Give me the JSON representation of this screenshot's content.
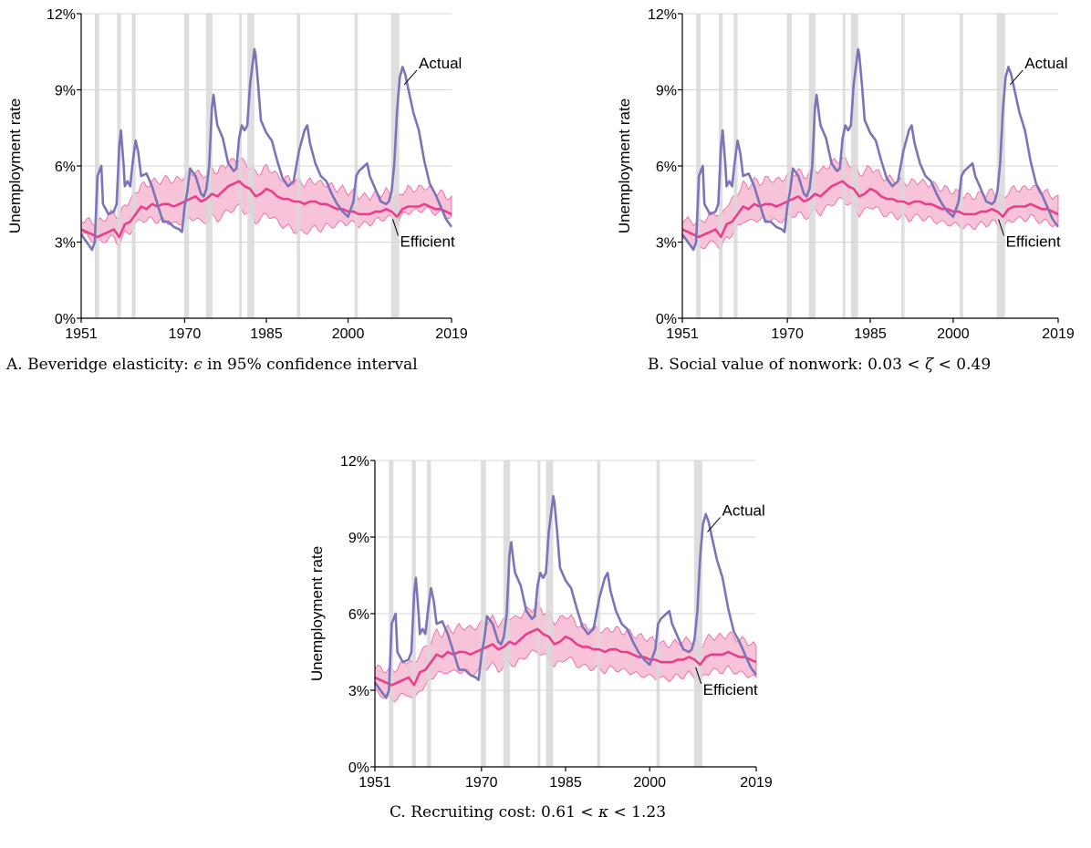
{
  "figure": {
    "panels": [
      {
        "id": "A",
        "caption_prefix": "A. Beveridge elasticity: ",
        "caption_symbol": "ϵ",
        "caption_suffix": " in 95% confidence interval",
        "band_lower_offset": [
          -0.15,
          -0.25,
          -0.35,
          -0.5,
          -0.7,
          -0.8,
          -0.9,
          -1.0,
          -1.0,
          -1.0,
          -1.2,
          -1.0,
          -0.5,
          -0.4,
          -0.3,
          -0.2,
          -0.15,
          -0.15
        ]
      },
      {
        "id": "B",
        "caption_prefix": "B. Social value of nonwork: 0.03 < ",
        "caption_symbol": "ζ",
        "caption_suffix": " < 0.49",
        "band_lower_offset": [
          -0.4,
          -0.45,
          -0.5,
          -0.55,
          -0.6,
          -0.65,
          -0.65,
          -0.7,
          -0.7,
          -0.65,
          -0.6,
          -0.6,
          -0.55,
          -0.5,
          -0.5,
          -0.5,
          -0.5,
          -0.5
        ]
      },
      {
        "id": "C",
        "caption_prefix": "C. Recruiting cost: 0.61 < ",
        "caption_symbol": "κ",
        "caption_suffix": " < 1.23",
        "band_lower_offset": [
          -0.55,
          -0.6,
          -0.65,
          -0.7,
          -0.75,
          -0.8,
          -0.8,
          -0.85,
          -0.85,
          -0.8,
          -0.75,
          -0.75,
          -0.7,
          -0.65,
          -0.65,
          -0.65,
          -0.65,
          -0.65
        ]
      }
    ]
  },
  "chart_data": {
    "type": "line",
    "ylabel": "Unemployment rate",
    "xlim": [
      1951,
      2019
    ],
    "ylim": [
      0,
      12
    ],
    "x_ticks": [
      1951,
      1970,
      1985,
      2000,
      2019
    ],
    "y_ticks": [
      0,
      3,
      6,
      9,
      12
    ],
    "y_tick_labels": [
      "0%",
      "3%",
      "6%",
      "9%",
      "12%"
    ],
    "grid": true,
    "recessions": [
      [
        1953.5,
        1954.3
      ],
      [
        1957.6,
        1958.3
      ],
      [
        1960.3,
        1961.0
      ],
      [
        1969.9,
        1970.8
      ],
      [
        1973.9,
        1975.1
      ],
      [
        1980.0,
        1980.5
      ],
      [
        1981.5,
        1982.8
      ],
      [
        1990.6,
        1991.2
      ],
      [
        2001.2,
        2001.8
      ],
      [
        2007.9,
        2009.4
      ]
    ],
    "series": [
      {
        "name": "Actual",
        "color": "#7b74b8",
        "x": [
          1951,
          1952,
          1953,
          1953.5,
          1954,
          1954.7,
          1955,
          1956,
          1957,
          1957.5,
          1958,
          1958.3,
          1958.8,
          1959,
          1959.5,
          1960,
          1960.5,
          1961,
          1961.5,
          1962,
          1963,
          1964,
          1965,
          1966,
          1967,
          1968,
          1969,
          1969.5,
          1970,
          1970.5,
          1971,
          1972,
          1973,
          1973.5,
          1974,
          1974.5,
          1975,
          1975.3,
          1975.8,
          1976,
          1977,
          1978,
          1979,
          1979.5,
          1980,
          1980.5,
          1981,
          1981.5,
          1982,
          1982.8,
          1983,
          1983.5,
          1984,
          1985,
          1986,
          1987,
          1988,
          1989,
          1990,
          1991,
          1992,
          1992.5,
          1993,
          1994,
          1995,
          1996,
          1997,
          1998,
          1999,
          2000,
          2001,
          2001.5,
          2002,
          2003,
          2003.5,
          2004,
          2005,
          2006,
          2007,
          2007.5,
          2008,
          2008.5,
          2009,
          2009.5,
          2010,
          2010.5,
          2011,
          2012,
          2013,
          2014,
          2015,
          2016,
          2017,
          2018,
          2019
        ],
        "y": [
          3.3,
          3.0,
          2.7,
          3.0,
          5.6,
          6.0,
          4.5,
          4.1,
          4.2,
          4.5,
          6.8,
          7.4,
          6.0,
          5.2,
          5.4,
          5.2,
          6.2,
          7.0,
          6.5,
          5.6,
          5.7,
          5.2,
          4.5,
          3.8,
          3.8,
          3.6,
          3.5,
          3.4,
          4.4,
          5.0,
          5.9,
          5.6,
          4.9,
          4.8,
          5.1,
          6.0,
          8.3,
          8.8,
          7.9,
          7.6,
          7.1,
          6.1,
          5.8,
          5.9,
          7.1,
          7.6,
          7.4,
          7.6,
          9.2,
          10.6,
          10.4,
          9.2,
          7.8,
          7.3,
          7.0,
          6.2,
          5.5,
          5.2,
          5.4,
          6.6,
          7.4,
          7.6,
          6.9,
          6.1,
          5.6,
          5.4,
          4.9,
          4.5,
          4.2,
          4.0,
          4.6,
          5.6,
          5.8,
          6.0,
          6.1,
          5.6,
          5.1,
          4.6,
          4.5,
          4.6,
          5.0,
          6.1,
          8.2,
          9.5,
          9.9,
          9.6,
          9.1,
          8.1,
          7.4,
          6.2,
          5.3,
          4.9,
          4.4,
          3.9,
          3.6
        ]
      },
      {
        "name": "Efficient",
        "color": "#e83f8c",
        "x": [
          1951,
          1952,
          1953,
          1954,
          1955,
          1956,
          1957,
          1958,
          1959,
          1960,
          1961,
          1962,
          1963,
          1964,
          1965,
          1966,
          1967,
          1968,
          1969,
          1970,
          1971,
          1972,
          1973,
          1974,
          1975,
          1976,
          1977,
          1978,
          1979,
          1980,
          1981,
          1982,
          1983,
          1984,
          1985,
          1986,
          1987,
          1988,
          1989,
          1990,
          1991,
          1992,
          1993,
          1994,
          1995,
          1996,
          1997,
          1998,
          1999,
          2000,
          2001,
          2002,
          2003,
          2004,
          2005,
          2006,
          2007,
          2008,
          2009,
          2010,
          2011,
          2012,
          2013,
          2014,
          2015,
          2016,
          2017,
          2018,
          2019
        ],
        "y": [
          3.5,
          3.4,
          3.3,
          3.2,
          3.3,
          3.4,
          3.5,
          3.2,
          3.7,
          3.8,
          4.1,
          4.4,
          4.3,
          4.5,
          4.4,
          4.5,
          4.5,
          4.4,
          4.5,
          4.6,
          4.7,
          4.8,
          4.6,
          4.7,
          4.9,
          4.8,
          5.0,
          5.2,
          5.3,
          5.4,
          5.2,
          5.1,
          4.8,
          4.9,
          5.1,
          5.0,
          4.8,
          4.7,
          4.7,
          4.6,
          4.6,
          4.5,
          4.6,
          4.6,
          4.5,
          4.5,
          4.4,
          4.3,
          4.3,
          4.2,
          4.2,
          4.1,
          4.1,
          4.1,
          4.2,
          4.2,
          4.3,
          4.2,
          4.0,
          4.3,
          4.4,
          4.4,
          4.4,
          4.5,
          4.4,
          4.3,
          4.3,
          4.2,
          4.1
        ]
      }
    ],
    "band": {
      "name": "95% band",
      "color": "#f7c3d9",
      "x": [
        1951,
        1955,
        1959,
        1963,
        1967,
        1971,
        1975,
        1979,
        1983,
        1987,
        1991,
        1995,
        1999,
        2003,
        2007,
        2011,
        2015,
        2019
      ],
      "upper_offset": [
        0.4,
        0.6,
        0.8,
        0.9,
        1.0,
        1.0,
        1.0,
        0.9,
        0.9,
        0.8,
        0.8,
        0.8,
        0.8,
        0.7,
        0.7,
        0.7,
        0.7,
        0.6
      ]
    },
    "annotations": [
      {
        "text": "Actual",
        "at_x": 2010.3,
        "at_y": 9.2
      },
      {
        "text": "Efficient",
        "at_x": 2008.2,
        "at_y": 3.9
      }
    ]
  }
}
